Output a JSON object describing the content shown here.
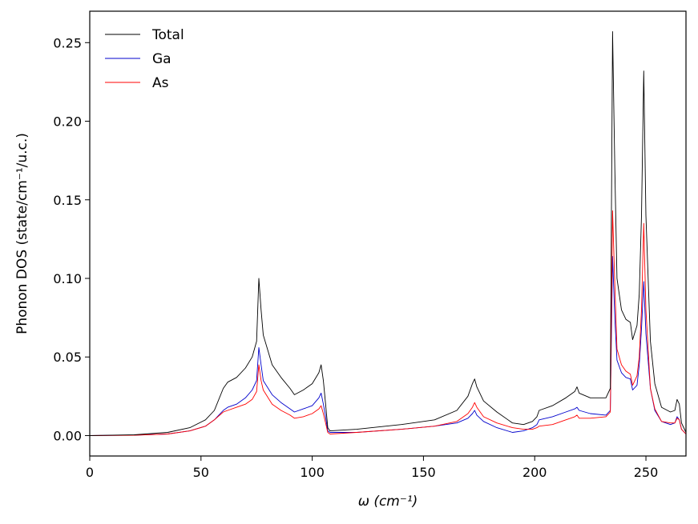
{
  "chart_data": {
    "type": "line",
    "xlabel": "ω (cm⁻¹)",
    "ylabel": "Phonon DOS (state/cm⁻¹/u.c.)",
    "xlim": [
      0,
      268
    ],
    "ylim": [
      -0.013,
      0.27
    ],
    "x_ticks": [
      0,
      50,
      100,
      150,
      200,
      250
    ],
    "x_tick_labels": [
      "0",
      "50",
      "100",
      "150",
      "200",
      "250"
    ],
    "y_ticks": [
      0.0,
      0.05,
      0.1,
      0.15,
      0.2,
      0.25
    ],
    "y_tick_labels": [
      "0.00",
      "0.05",
      "0.10",
      "0.15",
      "0.20",
      "0.25"
    ],
    "legend_position": "top-left",
    "series": [
      {
        "name": "Total",
        "color": "#000000",
        "points": [
          [
            0,
            0
          ],
          [
            20,
            0.0005
          ],
          [
            35,
            0.002
          ],
          [
            45,
            0.005
          ],
          [
            52,
            0.01
          ],
          [
            56,
            0.016
          ],
          [
            60,
            0.03
          ],
          [
            62,
            0.034
          ],
          [
            66,
            0.037
          ],
          [
            70,
            0.043
          ],
          [
            73,
            0.05
          ],
          [
            75,
            0.06
          ],
          [
            76,
            0.1
          ],
          [
            77,
            0.08
          ],
          [
            78,
            0.064
          ],
          [
            82,
            0.045
          ],
          [
            86,
            0.037
          ],
          [
            90,
            0.03
          ],
          [
            92,
            0.026
          ],
          [
            96,
            0.029
          ],
          [
            100,
            0.033
          ],
          [
            103,
            0.04
          ],
          [
            104,
            0.045
          ],
          [
            105,
            0.035
          ],
          [
            106,
            0.02
          ],
          [
            107,
            0.005
          ],
          [
            108,
            0.003
          ],
          [
            120,
            0.004
          ],
          [
            140,
            0.007
          ],
          [
            155,
            0.01
          ],
          [
            165,
            0.016
          ],
          [
            170,
            0.025
          ],
          [
            172,
            0.033
          ],
          [
            173,
            0.036
          ],
          [
            174,
            0.031
          ],
          [
            177,
            0.022
          ],
          [
            183,
            0.015
          ],
          [
            190,
            0.008
          ],
          [
            195,
            0.007
          ],
          [
            199,
            0.009
          ],
          [
            201,
            0.012
          ],
          [
            202,
            0.016
          ],
          [
            208,
            0.019
          ],
          [
            214,
            0.024
          ],
          [
            218,
            0.028
          ],
          [
            219,
            0.031
          ],
          [
            220,
            0.027
          ],
          [
            225,
            0.024
          ],
          [
            232,
            0.024
          ],
          [
            234,
            0.03
          ],
          [
            235,
            0.257
          ],
          [
            236,
            0.17
          ],
          [
            237,
            0.1
          ],
          [
            239,
            0.08
          ],
          [
            241,
            0.074
          ],
          [
            243,
            0.072
          ],
          [
            244,
            0.061
          ],
          [
            246,
            0.07
          ],
          [
            247,
            0.09
          ],
          [
            248,
            0.14
          ],
          [
            249,
            0.232
          ],
          [
            250,
            0.14
          ],
          [
            252,
            0.06
          ],
          [
            254,
            0.033
          ],
          [
            257,
            0.018
          ],
          [
            261,
            0.015
          ],
          [
            263,
            0.016
          ],
          [
            264,
            0.023
          ],
          [
            265,
            0.02
          ],
          [
            266,
            0.008
          ],
          [
            268,
            0.002
          ]
        ]
      },
      {
        "name": "Ga",
        "color": "#0000cc",
        "points": [
          [
            0,
            0
          ],
          [
            20,
            0.0003
          ],
          [
            35,
            0.001
          ],
          [
            45,
            0.003
          ],
          [
            52,
            0.006
          ],
          [
            56,
            0.01
          ],
          [
            60,
            0.016
          ],
          [
            62,
            0.018
          ],
          [
            66,
            0.02
          ],
          [
            70,
            0.024
          ],
          [
            73,
            0.029
          ],
          [
            75,
            0.035
          ],
          [
            76,
            0.056
          ],
          [
            77,
            0.045
          ],
          [
            78,
            0.035
          ],
          [
            82,
            0.026
          ],
          [
            86,
            0.021
          ],
          [
            90,
            0.017
          ],
          [
            92,
            0.015
          ],
          [
            96,
            0.017
          ],
          [
            100,
            0.019
          ],
          [
            103,
            0.024
          ],
          [
            104,
            0.027
          ],
          [
            105,
            0.02
          ],
          [
            106,
            0.012
          ],
          [
            107,
            0.003
          ],
          [
            108,
            0.002
          ],
          [
            120,
            0.002
          ],
          [
            140,
            0.004
          ],
          [
            155,
            0.006
          ],
          [
            165,
            0.008
          ],
          [
            170,
            0.011
          ],
          [
            172,
            0.014
          ],
          [
            173,
            0.016
          ],
          [
            174,
            0.013
          ],
          [
            177,
            0.009
          ],
          [
            183,
            0.005
          ],
          [
            190,
            0.002
          ],
          [
            195,
            0.003
          ],
          [
            199,
            0.005
          ],
          [
            201,
            0.007
          ],
          [
            202,
            0.01
          ],
          [
            208,
            0.012
          ],
          [
            214,
            0.015
          ],
          [
            218,
            0.017
          ],
          [
            219,
            0.018
          ],
          [
            220,
            0.016
          ],
          [
            225,
            0.014
          ],
          [
            232,
            0.013
          ],
          [
            234,
            0.016
          ],
          [
            235,
            0.114
          ],
          [
            236,
            0.075
          ],
          [
            237,
            0.048
          ],
          [
            239,
            0.04
          ],
          [
            241,
            0.037
          ],
          [
            243,
            0.036
          ],
          [
            244,
            0.029
          ],
          [
            246,
            0.032
          ],
          [
            247,
            0.045
          ],
          [
            248,
            0.068
          ],
          [
            249,
            0.098
          ],
          [
            250,
            0.065
          ],
          [
            252,
            0.03
          ],
          [
            254,
            0.016
          ],
          [
            257,
            0.009
          ],
          [
            261,
            0.007
          ],
          [
            263,
            0.008
          ],
          [
            264,
            0.012
          ],
          [
            265,
            0.01
          ],
          [
            266,
            0.004
          ],
          [
            268,
            0.001
          ]
        ]
      },
      {
        "name": "As",
        "color": "#ff0000",
        "points": [
          [
            0,
            0
          ],
          [
            20,
            0.0002
          ],
          [
            35,
            0.001
          ],
          [
            45,
            0.003
          ],
          [
            52,
            0.006
          ],
          [
            56,
            0.01
          ],
          [
            60,
            0.015
          ],
          [
            62,
            0.016
          ],
          [
            66,
            0.018
          ],
          [
            70,
            0.02
          ],
          [
            73,
            0.023
          ],
          [
            75,
            0.028
          ],
          [
            76,
            0.045
          ],
          [
            77,
            0.035
          ],
          [
            78,
            0.029
          ],
          [
            82,
            0.02
          ],
          [
            86,
            0.016
          ],
          [
            90,
            0.013
          ],
          [
            92,
            0.011
          ],
          [
            96,
            0.012
          ],
          [
            100,
            0.014
          ],
          [
            103,
            0.017
          ],
          [
            104,
            0.019
          ],
          [
            105,
            0.014
          ],
          [
            106,
            0.008
          ],
          [
            107,
            0.002
          ],
          [
            108,
            0.001
          ],
          [
            120,
            0.002
          ],
          [
            140,
            0.004
          ],
          [
            155,
            0.006
          ],
          [
            165,
            0.009
          ],
          [
            170,
            0.014
          ],
          [
            172,
            0.018
          ],
          [
            173,
            0.021
          ],
          [
            174,
            0.018
          ],
          [
            177,
            0.012
          ],
          [
            183,
            0.008
          ],
          [
            190,
            0.005
          ],
          [
            195,
            0.004
          ],
          [
            199,
            0.004
          ],
          [
            201,
            0.005
          ],
          [
            202,
            0.006
          ],
          [
            208,
            0.007
          ],
          [
            214,
            0.01
          ],
          [
            218,
            0.012
          ],
          [
            219,
            0.013
          ],
          [
            220,
            0.011
          ],
          [
            225,
            0.011
          ],
          [
            232,
            0.012
          ],
          [
            234,
            0.015
          ],
          [
            235,
            0.143
          ],
          [
            236,
            0.096
          ],
          [
            237,
            0.055
          ],
          [
            239,
            0.045
          ],
          [
            241,
            0.041
          ],
          [
            243,
            0.039
          ],
          [
            244,
            0.032
          ],
          [
            246,
            0.038
          ],
          [
            247,
            0.05
          ],
          [
            248,
            0.08
          ],
          [
            249,
            0.135
          ],
          [
            250,
            0.08
          ],
          [
            252,
            0.03
          ],
          [
            254,
            0.017
          ],
          [
            257,
            0.009
          ],
          [
            261,
            0.008
          ],
          [
            263,
            0.008
          ],
          [
            264,
            0.011
          ],
          [
            265,
            0.01
          ],
          [
            266,
            0.004
          ],
          [
            268,
            0.001
          ]
        ]
      }
    ]
  }
}
